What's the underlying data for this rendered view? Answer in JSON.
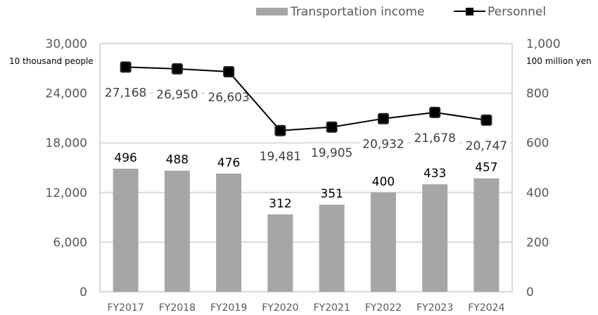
{
  "chart_data": {
    "type": "bar+line",
    "categories": [
      "FY2017",
      "FY2018",
      "FY2019",
      "FY2020",
      "FY2021",
      "FY2022",
      "FY2023",
      "FY2024"
    ],
    "series": [
      {
        "name": "Transportation income",
        "type": "bar",
        "axis": "right",
        "color": "#a6a6a6",
        "values": [
          496,
          488,
          476,
          312,
          351,
          400,
          433,
          457
        ],
        "labels": [
          "496",
          "488",
          "476",
          "312",
          "351",
          "400",
          "433",
          "457"
        ]
      },
      {
        "name": "Personnel",
        "type": "line",
        "axis": "left",
        "color": "#000000",
        "marker": "square",
        "values": [
          27168,
          26950,
          26603,
          19481,
          19905,
          20932,
          21678,
          20747
        ],
        "labels": [
          "27,168",
          "26,950",
          "26,603",
          "19,481",
          "19,905",
          "20,932",
          "21,678",
          "20,747"
        ]
      }
    ],
    "left_axis": {
      "unit": "10 thousand people",
      "range": [
        0,
        30000
      ],
      "ticks": [
        "0",
        "6,000",
        "12,000",
        "18,000",
        "24,000",
        "30,000"
      ]
    },
    "right_axis": {
      "unit": "100 million yen",
      "range": [
        0,
        1000
      ],
      "ticks": [
        "0",
        "200",
        "400",
        "600",
        "800",
        "1,000"
      ]
    },
    "grid": true,
    "legend": "top-right"
  }
}
